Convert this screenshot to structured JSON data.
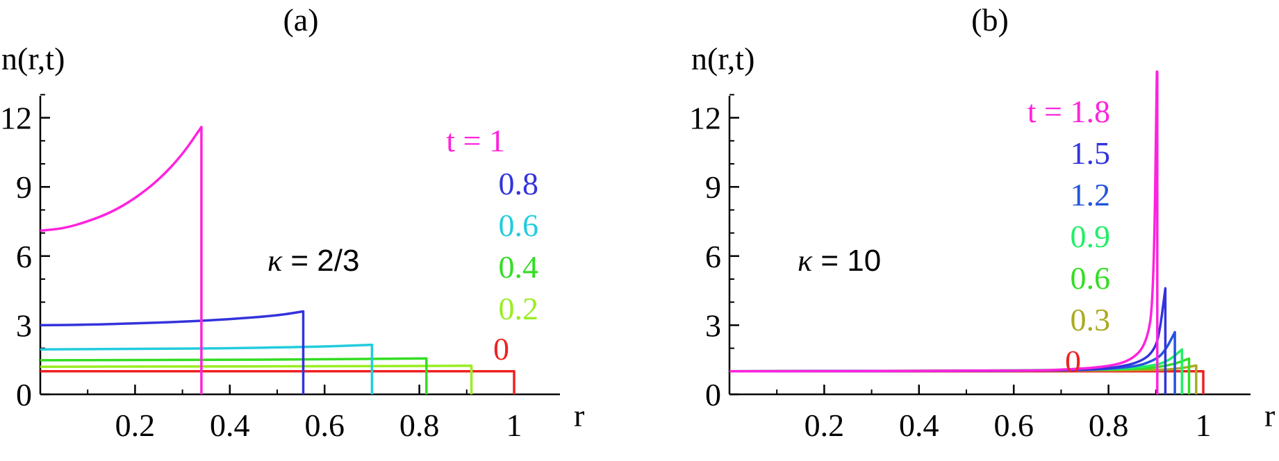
{
  "panels": [
    {
      "label": "(a)",
      "ylabel": "n(r,t)",
      "xlabel": "r",
      "annotation_symbol": "κ",
      "annotation_value": " = 2/3",
      "legend_prefix": "t = ",
      "legend": [
        {
          "text": "1",
          "color": "#ff22dd"
        },
        {
          "text": "0.8",
          "color": "#3333dd"
        },
        {
          "text": "0.6",
          "color": "#22ccdd"
        },
        {
          "text": "0.4",
          "color": "#33dd22"
        },
        {
          "text": "0.2",
          "color": "#99ee22"
        },
        {
          "text": "0",
          "color": "#ee2222"
        }
      ]
    },
    {
      "label": "(b)",
      "ylabel": "n(r,t)",
      "xlabel": "r",
      "annotation_symbol": "κ",
      "annotation_value": " = 10",
      "legend_prefix": "t = ",
      "legend": [
        {
          "text": "1.8",
          "color": "#ff22dd"
        },
        {
          "text": "1.5",
          "color": "#3333dd"
        },
        {
          "text": "1.2",
          "color": "#2255dd"
        },
        {
          "text": "0.9",
          "color": "#22ee66"
        },
        {
          "text": "0.6",
          "color": "#33dd22"
        },
        {
          "text": "0.3",
          "color": "#aaaa22"
        },
        {
          "text": "0",
          "color": "#ee2222"
        }
      ]
    }
  ],
  "chart_data": [
    {
      "type": "line",
      "title": "(a)",
      "xlabel": "r",
      "ylabel": "n(r,t)",
      "xlim": [
        0,
        1.1
      ],
      "ylim": [
        0,
        14
      ],
      "xticks": [
        0.2,
        0.4,
        0.6,
        0.8,
        1
      ],
      "xtick_labels": [
        "0.2",
        "0.4",
        "0.6",
        "0.8",
        "1"
      ],
      "yticks": [
        0,
        3,
        6,
        9,
        12
      ],
      "ytick_labels": [
        "0",
        "3",
        "6",
        "9",
        "12"
      ],
      "grid": false,
      "legend_position": "right",
      "annotation": "κ = 2/3",
      "series": [
        {
          "t": 1,
          "color": "#ff22dd",
          "x": [
            0,
            0.05,
            0.1,
            0.15,
            0.2,
            0.25,
            0.3,
            0.34
          ],
          "y": [
            7.1,
            7.2,
            7.5,
            7.9,
            8.5,
            9.3,
            10.4,
            11.6
          ],
          "edge": 0.34
        },
        {
          "t": 0.8,
          "color": "#3333dd",
          "x": [
            0,
            0.1,
            0.2,
            0.3,
            0.4,
            0.5,
            0.555
          ],
          "y": [
            3.0,
            3.02,
            3.08,
            3.15,
            3.26,
            3.42,
            3.6
          ],
          "edge": 0.555
        },
        {
          "t": 0.6,
          "color": "#22ccdd",
          "x": [
            0,
            0.2,
            0.4,
            0.6,
            0.7
          ],
          "y": [
            1.95,
            1.97,
            2.0,
            2.07,
            2.15
          ],
          "edge": 0.7
        },
        {
          "t": 0.4,
          "color": "#33dd22",
          "x": [
            0,
            0.2,
            0.4,
            0.6,
            0.815
          ],
          "y": [
            1.48,
            1.49,
            1.5,
            1.52,
            1.56
          ],
          "edge": 0.815
        },
        {
          "t": 0.2,
          "color": "#99ee22",
          "x": [
            0,
            0.3,
            0.6,
            0.91
          ],
          "y": [
            1.2,
            1.21,
            1.22,
            1.24
          ],
          "edge": 0.91
        },
        {
          "t": 0,
          "color": "#ee2222",
          "x": [
            0,
            1
          ],
          "y": [
            1.0,
            1.0
          ],
          "edge": 1.0
        }
      ]
    },
    {
      "type": "line",
      "title": "(b)",
      "xlabel": "r",
      "ylabel": "n(r,t)",
      "xlim": [
        0,
        1.1
      ],
      "ylim": [
        0,
        14
      ],
      "xticks": [
        0.2,
        0.4,
        0.6,
        0.8,
        1
      ],
      "xtick_labels": [
        "0.2",
        "0.4",
        "0.6",
        "0.8",
        "1"
      ],
      "yticks": [
        0,
        3,
        6,
        9,
        12
      ],
      "ytick_labels": [
        "0",
        "3",
        "6",
        "9",
        "12"
      ],
      "grid": false,
      "legend_position": "right",
      "annotation": "κ = 10",
      "series": [
        {
          "t": 1.8,
          "color": "#ff22dd",
          "x": [
            0,
            0.6,
            0.7,
            0.8,
            0.85,
            0.88,
            0.895,
            0.902
          ],
          "y": [
            1.0,
            1.02,
            1.06,
            1.2,
            1.5,
            2.2,
            4.0,
            14.0
          ],
          "edge": 0.903
        },
        {
          "t": 1.5,
          "color": "#3333dd",
          "x": [
            0,
            0.7,
            0.8,
            0.87,
            0.9,
            0.91,
            0.92
          ],
          "y": [
            1.0,
            1.03,
            1.1,
            1.4,
            2.0,
            3.0,
            4.6
          ],
          "edge": 0.92
        },
        {
          "t": 1.2,
          "color": "#2255dd",
          "x": [
            0,
            0.7,
            0.85,
            0.9,
            0.92,
            0.94
          ],
          "y": [
            1.0,
            1.02,
            1.15,
            1.5,
            1.9,
            2.7
          ],
          "edge": 0.94
        },
        {
          "t": 0.9,
          "color": "#22ee66",
          "x": [
            0,
            0.8,
            0.9,
            0.93,
            0.955
          ],
          "y": [
            1.0,
            1.04,
            1.25,
            1.5,
            1.95
          ],
          "edge": 0.955
        },
        {
          "t": 0.6,
          "color": "#33dd22",
          "x": [
            0,
            0.85,
            0.93,
            0.97
          ],
          "y": [
            1.0,
            1.05,
            1.25,
            1.55
          ],
          "edge": 0.97
        },
        {
          "t": 0.3,
          "color": "#aaaa22",
          "x": [
            0,
            0.9,
            0.95,
            0.985
          ],
          "y": [
            1.0,
            1.04,
            1.12,
            1.25
          ],
          "edge": 0.985
        },
        {
          "t": 0,
          "color": "#ee2222",
          "x": [
            0,
            1
          ],
          "y": [
            1.0,
            1.0
          ],
          "edge": 1.0
        }
      ]
    }
  ]
}
